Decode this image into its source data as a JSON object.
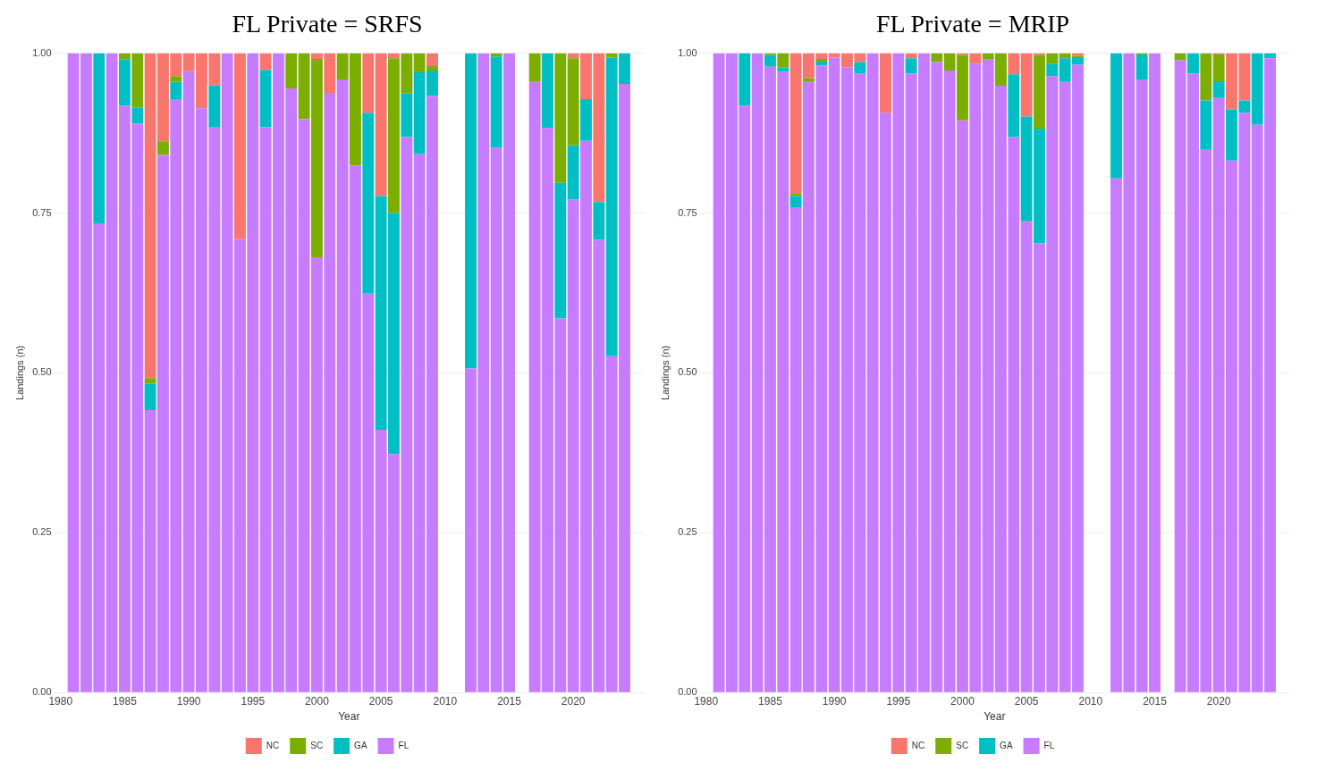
{
  "chart_data": [
    {
      "type": "bar",
      "title": "FL Private = SRFS",
      "xlabel": "Year",
      "ylabel": "Landings (n)",
      "stacked": true,
      "grid": true,
      "legend": "bottom",
      "x": [
        1981,
        1982,
        1983,
        1984,
        1985,
        1986,
        1987,
        1988,
        1989,
        1990,
        1991,
        1992,
        1993,
        1994,
        1995,
        1996,
        1997,
        1998,
        1999,
        2000,
        2001,
        2002,
        2003,
        2004,
        2005,
        2006,
        2007,
        2008,
        2009,
        2012,
        2013,
        2014,
        2015,
        2017,
        2018,
        2019,
        2020,
        2021,
        2022,
        2023,
        2024
      ],
      "xlim": [
        1979.5,
        2025.5
      ],
      "xticks": [
        1980,
        1985,
        1990,
        1995,
        2000,
        2005,
        2010,
        2015,
        2020
      ],
      "ylim": [
        0,
        1
      ],
      "yticks": [
        {
          "value": 0,
          "label": "0.00"
        },
        {
          "value": 0.25,
          "label": "0.25"
        },
        {
          "value": 0.5,
          "label": "0.50"
        },
        {
          "value": 0.75,
          "label": "0.75"
        },
        {
          "value": 1,
          "label": "1.00"
        }
      ],
      "series": [
        {
          "name": "FL",
          "color": "#c77cff",
          "values": [
            1,
            1,
            0.734,
            1,
            0.918,
            0.89,
            0.442,
            0.841,
            0.928,
            0.972,
            0.914,
            0.885,
            1,
            0.709,
            1,
            0.884,
            1,
            0.945,
            0.897,
            0.681,
            0.938,
            0.959,
            0.824,
            0.625,
            0.411,
            0.373,
            0.869,
            0.842,
            0.933,
            0.507,
            1,
            0.852,
            1,
            0.955,
            0.883,
            0.585,
            0.771,
            0.863,
            0.708,
            0.526,
            0.952
          ]
        },
        {
          "name": "GA",
          "color": "#00bfc4",
          "values": [
            null,
            null,
            0.266,
            null,
            0.072,
            0.025,
            0.041,
            null,
            0.027,
            null,
            null,
            0.065,
            null,
            null,
            null,
            0.09,
            null,
            null,
            null,
            null,
            null,
            null,
            null,
            0.282,
            0.366,
            0.377,
            0.068,
            0.128,
            0.04,
            0.493,
            null,
            0.143,
            null,
            null,
            0.117,
            0.212,
            0.085,
            0.065,
            0.059,
            0.467,
            0.048
          ]
        },
        {
          "name": "SC",
          "color": "#7cae00",
          "values": [
            null,
            null,
            null,
            null,
            0.01,
            0.085,
            0.009,
            0.021,
            0.009,
            null,
            null,
            null,
            null,
            null,
            null,
            null,
            null,
            0.055,
            0.103,
            0.31,
            null,
            0.041,
            0.176,
            null,
            null,
            0.242,
            0.063,
            0.03,
            0.007,
            null,
            null,
            0.005,
            null,
            0.045,
            null,
            0.203,
            0.136,
            null,
            null,
            0.007,
            null
          ]
        },
        {
          "name": "NC",
          "color": "#f8766d",
          "values": [
            null,
            null,
            null,
            null,
            null,
            null,
            0.508,
            0.138,
            0.036,
            0.028,
            0.086,
            0.05,
            null,
            0.291,
            null,
            0.026,
            null,
            null,
            null,
            0.009,
            0.062,
            null,
            null,
            0.093,
            0.223,
            0.008,
            null,
            null,
            0.02,
            null,
            null,
            null,
            null,
            null,
            null,
            null,
            0.008,
            0.072,
            0.233,
            null,
            null
          ]
        }
      ]
    },
    {
      "type": "bar",
      "title": "FL Private = MRIP",
      "xlabel": "Year",
      "ylabel": "Landings (n)",
      "stacked": true,
      "grid": true,
      "legend": "bottom",
      "x": [
        1981,
        1982,
        1983,
        1984,
        1985,
        1986,
        1987,
        1988,
        1989,
        1990,
        1991,
        1992,
        1993,
        1994,
        1995,
        1996,
        1997,
        1998,
        1999,
        2000,
        2001,
        2002,
        2003,
        2004,
        2005,
        2006,
        2007,
        2008,
        2009,
        2012,
        2013,
        2014,
        2015,
        2017,
        2018,
        2019,
        2020,
        2021,
        2022,
        2023,
        2024
      ],
      "xlim": [
        1979.5,
        2025.5
      ],
      "xticks": [
        1980,
        1985,
        1990,
        1995,
        2000,
        2005,
        2010,
        2015,
        2020
      ],
      "ylim": [
        0,
        1
      ],
      "yticks": [
        {
          "value": 0,
          "label": "0.00"
        },
        {
          "value": 0.25,
          "label": "0.25"
        },
        {
          "value": 0.5,
          "label": "0.50"
        },
        {
          "value": 0.75,
          "label": "0.75"
        },
        {
          "value": 1,
          "label": "1.00"
        }
      ],
      "series": [
        {
          "name": "FL",
          "color": "#c77cff",
          "values": [
            1,
            1,
            0.918,
            1,
            0.979,
            0.971,
            0.759,
            0.955,
            0.981,
            0.993,
            0.978,
            0.968,
            1,
            0.907,
            1,
            0.968,
            1,
            0.986,
            0.973,
            0.895,
            0.983,
            0.99,
            0.949,
            0.869,
            0.737,
            0.703,
            0.964,
            0.955,
            0.982,
            0.804,
            1,
            0.959,
            1,
            0.989,
            0.968,
            0.849,
            0.93,
            0.832,
            0.907,
            0.888,
            0.992
          ]
        },
        {
          "name": "GA",
          "color": "#00bfc4",
          "values": [
            null,
            null,
            0.082,
            null,
            0.018,
            0.007,
            0.018,
            null,
            0.006,
            null,
            null,
            0.018,
            null,
            null,
            null,
            0.024,
            null,
            null,
            null,
            null,
            null,
            null,
            null,
            0.098,
            0.164,
            0.179,
            0.019,
            0.037,
            0.012,
            0.196,
            null,
            0.039,
            null,
            null,
            0.032,
            0.077,
            0.026,
            0.08,
            0.019,
            0.112,
            0.008
          ]
        },
        {
          "name": "SC",
          "color": "#7cae00",
          "values": [
            null,
            null,
            null,
            null,
            0.003,
            0.022,
            0.004,
            0.006,
            0.004,
            null,
            null,
            null,
            null,
            null,
            null,
            null,
            null,
            0.014,
            0.027,
            0.102,
            null,
            0.01,
            0.051,
            null,
            null,
            0.115,
            0.017,
            0.008,
            0.002,
            null,
            null,
            0.002,
            null,
            0.011,
            null,
            0.074,
            0.042,
            null,
            null,
            null,
            null
          ]
        },
        {
          "name": "NC",
          "color": "#f8766d",
          "values": [
            null,
            null,
            null,
            null,
            null,
            null,
            0.219,
            0.039,
            0.009,
            0.007,
            0.022,
            0.014,
            null,
            0.093,
            null,
            0.008,
            null,
            null,
            null,
            0.003,
            0.017,
            null,
            null,
            0.033,
            0.099,
            0.003,
            null,
            null,
            0.004,
            null,
            null,
            null,
            null,
            null,
            null,
            null,
            0.002,
            0.088,
            0.074,
            null,
            null
          ]
        }
      ]
    }
  ]
}
